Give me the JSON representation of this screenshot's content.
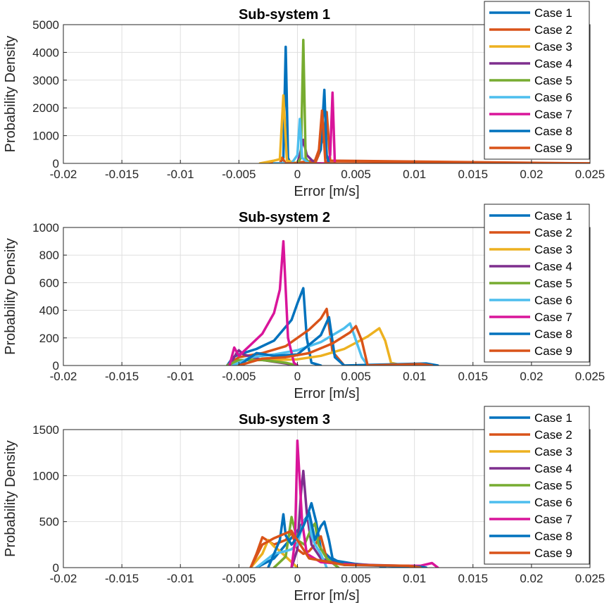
{
  "series_colors": [
    "#0072BD",
    "#D95319",
    "#EDB120",
    "#7E2F8E",
    "#77AC30",
    "#4DBEEE",
    "#D9159A",
    "#0072BD",
    "#D95319"
  ],
  "chart_data": [
    {
      "type": "line",
      "title": "Sub-system 1",
      "xlabel": "Error [m/s]",
      "ylabel": "Probability Density",
      "xlim": [
        -0.02,
        0.025
      ],
      "ylim": [
        0,
        5000
      ],
      "xticks": [
        -0.02,
        -0.015,
        -0.01,
        -0.005,
        0,
        0.005,
        0.01,
        0.015,
        0.02,
        0.025
      ],
      "xtick_labels": [
        "-0.02",
        "-0.015",
        "-0.01",
        "-0.005",
        "0",
        "0.005",
        "0.01",
        "0.015",
        "0.02",
        "0.025"
      ],
      "yticks": [
        0,
        1000,
        2000,
        3000,
        4000,
        5000
      ],
      "ytick_labels": [
        "0",
        "1000",
        "2000",
        "3000",
        "4000",
        "5000"
      ],
      "grid": true,
      "legend": "top-right",
      "series": [
        {
          "name": "Case 1",
          "x": [
            -0.003,
            -0.0015,
            -0.0012,
            -0.001,
            -0.0008,
            -0.0006,
            0.001
          ],
          "y": [
            0,
            0,
            200,
            4200,
            200,
            0,
            0
          ]
        },
        {
          "name": "Case 2",
          "x": [
            -0.003,
            -0.0015,
            -0.0013,
            -0.001,
            -0.0006,
            0.0015,
            0.0022,
            0.0025,
            0.0028,
            0.025
          ],
          "y": [
            0,
            0,
            200,
            0,
            0,
            100,
            900,
            1850,
            100,
            0
          ]
        },
        {
          "name": "Case 3",
          "x": [
            -0.0032,
            -0.002,
            -0.0015,
            -0.0012,
            -0.0009,
            0.0,
            0.0005
          ],
          "y": [
            0,
            100,
            150,
            2450,
            100,
            0,
            0
          ]
        },
        {
          "name": "Case 4",
          "x": [
            -0.002,
            0.0,
            0.0002,
            0.0005,
            0.0008,
            0.0015
          ],
          "y": [
            0,
            0,
            300,
            850,
            300,
            0
          ]
        },
        {
          "name": "Case 5",
          "x": [
            -0.001,
            0.0,
            0.0003,
            0.0005,
            0.0007,
            0.001,
            0.002
          ],
          "y": [
            0,
            0,
            200,
            4450,
            200,
            0,
            0
          ]
        },
        {
          "name": "Case 6",
          "x": [
            -0.002,
            -0.0005,
            0.0,
            0.0002,
            0.0004,
            0.001
          ],
          "y": [
            0,
            0,
            300,
            1600,
            200,
            0
          ]
        },
        {
          "name": "Case 7",
          "x": [
            0.0015,
            0.0025,
            0.0028,
            0.003,
            0.0032
          ],
          "y": [
            0,
            0,
            300,
            2550,
            0
          ]
        },
        {
          "name": "Case 8",
          "x": [
            0.0,
            0.0015,
            0.002,
            0.0023,
            0.0025,
            0.0027,
            0.0032
          ],
          "y": [
            0,
            0,
            500,
            2650,
            300,
            0,
            0
          ]
        },
        {
          "name": "Case 9",
          "x": [
            -0.001,
            0.0015,
            0.0018,
            0.0021,
            0.0024,
            0.025
          ],
          "y": [
            0,
            0,
            300,
            1900,
            0,
            0
          ]
        }
      ]
    },
    {
      "type": "line",
      "title": "Sub-system 2",
      "xlabel": "Error [m/s]",
      "ylabel": "Probability Density",
      "xlim": [
        -0.02,
        0.025
      ],
      "ylim": [
        0,
        1000
      ],
      "xticks": [
        -0.02,
        -0.015,
        -0.01,
        -0.005,
        0,
        0.005,
        0.01,
        0.015,
        0.02,
        0.025
      ],
      "xtick_labels": [
        "-0.02",
        "-0.015",
        "-0.01",
        "-0.005",
        "0",
        "0.005",
        "0.01",
        "0.015",
        "0.02",
        "0.025"
      ],
      "yticks": [
        0,
        200,
        400,
        600,
        800,
        1000
      ],
      "ytick_labels": [
        "0",
        "200",
        "400",
        "600",
        "800",
        "1000"
      ],
      "grid": true,
      "legend": "top-right",
      "series": [
        {
          "name": "Case 1",
          "x": [
            -0.006,
            -0.0055,
            -0.005,
            -0.0035,
            -0.002,
            -0.0005,
            0.0,
            0.0005,
            0.0008,
            0.0012,
            0.002
          ],
          "y": [
            0,
            60,
            80,
            120,
            180,
            330,
            450,
            560,
            200,
            20,
            0
          ]
        },
        {
          "name": "Case 2",
          "x": [
            -0.006,
            -0.005,
            -0.003,
            -0.001,
            0.001,
            0.002,
            0.0025,
            0.003,
            0.004
          ],
          "y": [
            0,
            60,
            90,
            140,
            260,
            340,
            410,
            100,
            0
          ]
        },
        {
          "name": "Case 3",
          "x": [
            -0.0055,
            -0.004,
            -0.002,
            0.0,
            0.002,
            0.004,
            0.006,
            0.007,
            0.0075,
            0.008,
            0.009
          ],
          "y": [
            0,
            50,
            40,
            45,
            70,
            120,
            210,
            270,
            180,
            20,
            0
          ]
        },
        {
          "name": "Case 4",
          "x": [
            -0.0058,
            -0.0052,
            -0.005,
            -0.0046,
            -0.003,
            -0.001,
            0.0
          ],
          "y": [
            0,
            90,
            110,
            80,
            40,
            15,
            0
          ]
        },
        {
          "name": "Case 5",
          "x": [
            -0.006,
            -0.005,
            -0.003,
            -0.001,
            0.0
          ],
          "y": [
            0,
            40,
            40,
            20,
            0
          ]
        },
        {
          "name": "Case 6",
          "x": [
            -0.0055,
            -0.004,
            -0.002,
            0.0,
            0.002,
            0.004,
            0.0045,
            0.0055,
            0.006
          ],
          "y": [
            0,
            60,
            80,
            110,
            170,
            270,
            305,
            60,
            0
          ]
        },
        {
          "name": "Case 7",
          "x": [
            -0.0058,
            -0.0054,
            -0.005,
            -0.004,
            -0.003,
            -0.002,
            -0.0015,
            -0.0012,
            -0.0008,
            -0.0003,
            0.0
          ],
          "y": [
            0,
            130,
            70,
            150,
            230,
            380,
            550,
            900,
            200,
            20,
            0
          ]
        },
        {
          "name": "Case 8",
          "x": [
            -0.005,
            -0.0035,
            -0.002,
            0.0,
            0.002,
            0.0027,
            0.0032,
            0.004,
            0.011,
            0.012
          ],
          "y": [
            0,
            90,
            70,
            80,
            220,
            350,
            60,
            0,
            15,
            0
          ]
        },
        {
          "name": "Case 9",
          "x": [
            -0.005,
            -0.003,
            -0.001,
            0.001,
            0.003,
            0.0045,
            0.005,
            0.0055,
            0.006,
            0.0105,
            0.0115
          ],
          "y": [
            0,
            50,
            60,
            90,
            160,
            240,
            285,
            180,
            0,
            10,
            0
          ]
        }
      ]
    },
    {
      "type": "line",
      "title": "Sub-system 3",
      "xlabel": "Error [m/s]",
      "ylabel": "Probability Density",
      "xlim": [
        -0.02,
        0.025
      ],
      "ylim": [
        0,
        1500
      ],
      "xticks": [
        -0.02,
        -0.015,
        -0.01,
        -0.005,
        0,
        0.005,
        0.01,
        0.015,
        0.02,
        0.025
      ],
      "xtick_labels": [
        "-0.02",
        "-0.015",
        "-0.01",
        "-0.005",
        "0",
        "0.005",
        "0.01",
        "0.015",
        "0.02",
        "0.025"
      ],
      "yticks": [
        0,
        500,
        1000,
        1500
      ],
      "ytick_labels": [
        "0",
        "500",
        "1000",
        "1500"
      ],
      "grid": true,
      "legend": "top-right",
      "series": [
        {
          "name": "Case 1",
          "x": [
            -0.0035,
            -0.002,
            -0.001,
            0.0,
            0.0008,
            0.0012,
            0.0016,
            0.002,
            0.003,
            0.005,
            0.007,
            0.0075
          ],
          "y": [
            0,
            100,
            250,
            400,
            550,
            700,
            500,
            200,
            80,
            40,
            20,
            0
          ]
        },
        {
          "name": "Case 2",
          "x": [
            -0.004,
            -0.0035,
            -0.003,
            -0.002,
            -0.001,
            -0.0005,
            0.0,
            0.0005,
            0.001,
            0.0015,
            0.002,
            0.0025,
            0.0035
          ],
          "y": [
            0,
            150,
            330,
            250,
            300,
            380,
            200,
            150,
            180,
            250,
            340,
            100,
            0
          ]
        },
        {
          "name": "Case 3",
          "x": [
            -0.004,
            -0.003,
            -0.0025,
            -0.002,
            -0.0015,
            -0.001,
            0.0
          ],
          "y": [
            0,
            150,
            300,
            230,
            180,
            120,
            0
          ]
        },
        {
          "name": "Case 4",
          "x": [
            -0.0005,
            0.0,
            0.0003,
            0.0005,
            0.0008,
            0.0012,
            0.002,
            0.003,
            0.004,
            0.006,
            0.009,
            0.0095
          ],
          "y": [
            0,
            200,
            800,
            1050,
            600,
            250,
            100,
            60,
            40,
            30,
            20,
            0
          ]
        },
        {
          "name": "Case 5",
          "x": [
            -0.002,
            -0.001,
            -0.0005,
            0.0,
            0.0006,
            0.0012,
            0.0015,
            0.0018,
            0.0025,
            0.0035
          ],
          "y": [
            0,
            120,
            550,
            300,
            250,
            430,
            480,
            250,
            100,
            0
          ]
        },
        {
          "name": "Case 6",
          "x": [
            -0.0035,
            -0.002,
            -0.001,
            -0.0005,
            0.0,
            0.0005,
            0.001,
            0.0012,
            0.0015,
            0.002,
            0.0025
          ],
          "y": [
            0,
            150,
            180,
            200,
            250,
            500,
            550,
            350,
            250,
            150,
            0
          ]
        },
        {
          "name": "Case 7",
          "x": [
            -0.0005,
            -0.0002,
            0.0,
            0.0004,
            0.0008,
            0.002,
            0.005,
            0.008,
            0.0105,
            0.0115,
            0.012
          ],
          "y": [
            0,
            300,
            1380,
            500,
            150,
            60,
            30,
            20,
            20,
            50,
            0
          ]
        },
        {
          "name": "Case 8",
          "x": [
            -0.0025,
            -0.0015,
            -0.0012,
            -0.001,
            -0.0005,
            0.0,
            0.0005,
            0.001,
            0.0015,
            0.002,
            0.0023,
            0.0027,
            0.003,
            0.004,
            0.0105,
            0.011
          ],
          "y": [
            0,
            300,
            580,
            350,
            250,
            330,
            450,
            600,
            300,
            450,
            500,
            300,
            100,
            30,
            10,
            0
          ]
        },
        {
          "name": "Case 9",
          "x": [
            -0.004,
            -0.003,
            -0.002,
            -0.0005,
            -0.0003,
            0.0,
            0.001,
            0.004,
            0.0095,
            0.0105
          ],
          "y": [
            0,
            250,
            320,
            400,
            350,
            300,
            100,
            30,
            20,
            0
          ]
        }
      ]
    }
  ]
}
